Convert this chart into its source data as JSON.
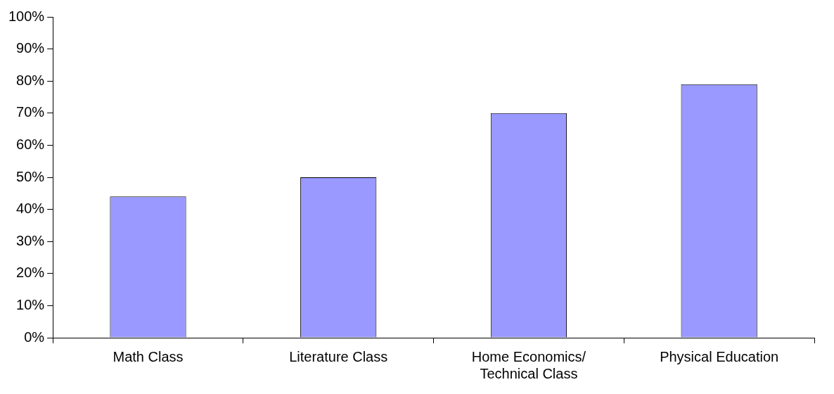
{
  "chart_data": {
    "type": "bar",
    "categories": [
      "Math Class",
      "Literature Class",
      "Home Economics/ Technical Class",
      "Physical Education"
    ],
    "values": [
      44,
      50,
      70,
      79
    ],
    "color": "#9999ff",
    "ylim": [
      0,
      100
    ],
    "yticks": [
      {
        "value": 0,
        "label": "0%"
      },
      {
        "value": 10,
        "label": "10%"
      },
      {
        "value": 20,
        "label": "20%"
      },
      {
        "value": 30,
        "label": "30%"
      },
      {
        "value": 40,
        "label": "40%"
      },
      {
        "value": 50,
        "label": "50%"
      },
      {
        "value": 60,
        "label": "60%"
      },
      {
        "value": 70,
        "label": "70%"
      },
      {
        "value": 80,
        "label": "80%"
      },
      {
        "value": 90,
        "label": "90%"
      },
      {
        "value": 100,
        "label": "100%"
      }
    ],
    "grid": false,
    "legend": false
  }
}
